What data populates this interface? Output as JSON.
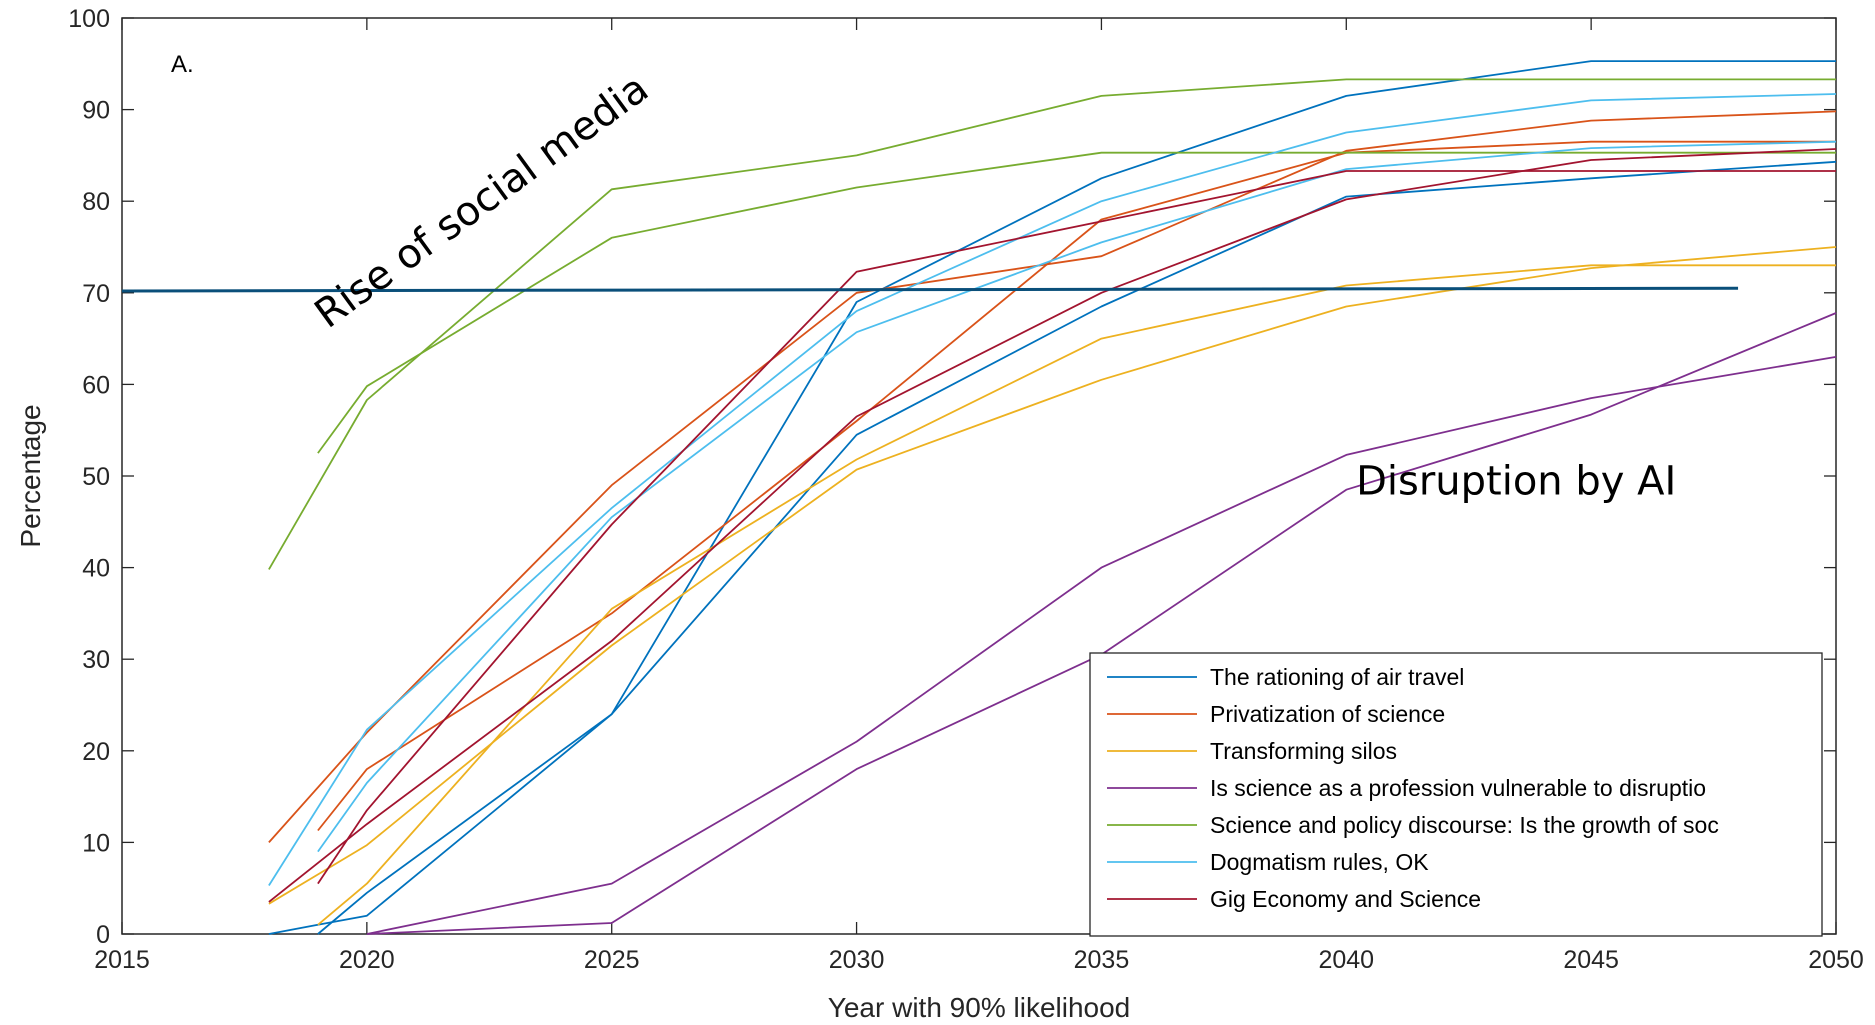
{
  "chart_data": {
    "type": "line",
    "panel_label": "A.",
    "xlabel": "Year with 90% likelihood",
    "ylabel": "Percentage",
    "xlim": [
      2015,
      2050
    ],
    "ylim": [
      0,
      100
    ],
    "xticks": [
      2015,
      2020,
      2025,
      2030,
      2035,
      2040,
      2045,
      2050
    ],
    "yticks": [
      0,
      10,
      20,
      30,
      40,
      50,
      60,
      70,
      80,
      90,
      100
    ],
    "legend_position": "bottom-right",
    "annotations": [
      {
        "text": "Rise of social media",
        "x": 2019.2,
        "y": 66,
        "rotate": -36
      },
      {
        "text": "Disruption by AI",
        "x": 2040.2,
        "y": 48,
        "rotate": 0
      }
    ],
    "reference_line": {
      "color": "#0a4f7a",
      "x": [
        2015,
        2048
      ],
      "y": [
        70.2,
        70.5
      ]
    },
    "series": [
      {
        "name": "The rationing of air travel",
        "color": "#0072BD",
        "lines": [
          {
            "x": [
              2018,
              2019,
              2020,
              2025,
              2030,
              2035,
              2040,
              2045,
              2050
            ],
            "y": [
              0,
              1,
              2,
              24,
              69,
              82.5,
              91.5,
              95.3,
              95.3
            ]
          },
          {
            "x": [
              2019,
              2020,
              2025,
              2030,
              2035,
              2040,
              2045,
              2050
            ],
            "y": [
              0,
              4.5,
              24,
              54.5,
              68.5,
              80.5,
              82.5,
              84.3
            ]
          }
        ]
      },
      {
        "name": "Privatization of science",
        "color": "#D95319",
        "lines": [
          {
            "x": [
              2018,
              2020,
              2025,
              2030,
              2035,
              2040,
              2045,
              2050
            ],
            "y": [
              10,
              22,
              49,
              70,
              74,
              85.5,
              88.8,
              89.8
            ]
          },
          {
            "x": [
              2019,
              2020,
              2025,
              2030,
              2035,
              2040,
              2045,
              2050
            ],
            "y": [
              11.3,
              18,
              35,
              56,
              78,
              85.3,
              86.5,
              86.5
            ]
          }
        ]
      },
      {
        "name": "Transforming silos",
        "color": "#EDB120",
        "lines": [
          {
            "x": [
              2019,
              2020,
              2025,
              2030,
              2035,
              2040,
              2045,
              2050
            ],
            "y": [
              1,
              5.5,
              35.5,
              51.8,
              65,
              70.8,
              73,
              73
            ]
          },
          {
            "x": [
              2018,
              2020,
              2025,
              2030,
              2035,
              2040,
              2045,
              2050
            ],
            "y": [
              3.3,
              9.7,
              31.5,
              50.7,
              60.5,
              68.5,
              72.7,
              75
            ]
          }
        ]
      },
      {
        "name": "Is science as a profession vulnerable to disruptio",
        "color": "#7E2F8E",
        "lines": [
          {
            "x": [
              2020,
              2025,
              2030,
              2035,
              2040,
              2045,
              2050
            ],
            "y": [
              0,
              5.5,
              21,
              40,
              52.3,
              58.5,
              63
            ]
          },
          {
            "x": [
              2020,
              2025,
              2030,
              2035,
              2040,
              2045,
              2050
            ],
            "y": [
              0,
              1.2,
              18,
              30.5,
              48.5,
              56.7,
              67.8
            ]
          }
        ]
      },
      {
        "name": "Science and policy discourse: Is the growth of soc",
        "color": "#77AC30",
        "lines": [
          {
            "x": [
              2018,
              2020,
              2025,
              2030,
              2035,
              2040,
              2045,
              2050
            ],
            "y": [
              39.8,
              58.3,
              81.3,
              85,
              91.5,
              93.3,
              93.3,
              93.3
            ]
          },
          {
            "x": [
              2019,
              2020,
              2025,
              2030,
              2035,
              2040,
              2045,
              2050
            ],
            "y": [
              52.5,
              59.8,
              76,
              81.5,
              85.3,
              85.3,
              85.3,
              85.3
            ]
          }
        ]
      },
      {
        "name": "Dogmatism rules, OK",
        "color": "#4DBEEE",
        "lines": [
          {
            "x": [
              2018,
              2020,
              2025,
              2030,
              2035,
              2040,
              2045,
              2050
            ],
            "y": [
              5.3,
              22.3,
              46.5,
              68,
              80,
              87.5,
              91,
              91.7
            ]
          },
          {
            "x": [
              2019,
              2020,
              2025,
              2030,
              2035,
              2040,
              2045,
              2050
            ],
            "y": [
              9,
              16.5,
              45.5,
              65.7,
              75.5,
              83.5,
              85.8,
              86.5
            ]
          }
        ]
      },
      {
        "name": "Gig Economy and Science",
        "color": "#A2142F",
        "lines": [
          {
            "x": [
              2018,
              2020,
              2025,
              2030,
              2035,
              2040,
              2045,
              2050
            ],
            "y": [
              3.5,
              12,
              32,
              56.5,
              70,
              80.2,
              84.5,
              85.7
            ]
          },
          {
            "x": [
              2019,
              2020,
              2025,
              2030,
              2035,
              2040,
              2045,
              2050
            ],
            "y": [
              5.5,
              13.5,
              44.7,
              72.3,
              77.8,
              83.3,
              83.3,
              83.3
            ]
          }
        ]
      }
    ]
  }
}
